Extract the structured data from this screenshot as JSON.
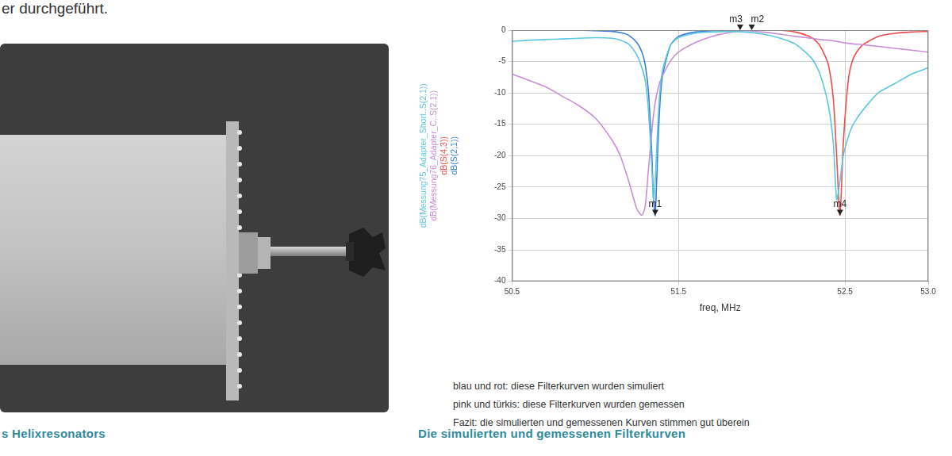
{
  "page": {
    "top_text": "er durchgeführt.",
    "photo_caption": "s Helixresonators",
    "chart_caption": "Die simulierten und gemessenen Filterkurven",
    "notes": [
      "blau und rot: diese Filterkurven wurden simuliert",
      "pink und türkis: diese Filterkurven wurden gemessen",
      "Fazit: die simulierten und gemessenen Kurven stimmen gut überein"
    ]
  },
  "chart_data": {
    "type": "line",
    "x_label": "freq, MHz",
    "x": [
      50.5,
      50.6,
      50.7,
      50.8,
      50.9,
      51.0,
      51.1,
      51.15,
      51.2,
      51.25,
      51.28,
      51.3,
      51.32,
      51.34,
      51.35,
      51.36,
      51.38,
      51.4,
      51.45,
      51.5,
      51.6,
      51.7,
      51.8,
      51.9,
      52.0,
      52.1,
      52.2,
      52.3,
      52.35,
      52.4,
      52.43,
      52.45,
      52.47,
      52.49,
      52.52,
      52.55,
      52.6,
      52.7,
      52.8,
      52.9,
      53.0
    ],
    "series": [
      {
        "name": "dB(Messung75_Adapter_Short..S(2,1))",
        "color": "#5cc8e0",
        "values": [
          -1.8,
          -1.6,
          -1.5,
          -1.4,
          -1.3,
          -1.2,
          -1.3,
          -1.6,
          -2.2,
          -4,
          -6,
          -8,
          -13,
          -22,
          -27,
          -24,
          -13,
          -7,
          -2.5,
          -1.2,
          -0.5,
          -0.3,
          -0.2,
          -0.3,
          -0.6,
          -1.2,
          -2.2,
          -4.5,
          -7,
          -12,
          -18,
          -27,
          -24,
          -20,
          -17,
          -15,
          -13,
          -10,
          -8.5,
          -7,
          -6
        ]
      },
      {
        "name": "dB(Messung76_Adapter_C..S(2,1))",
        "color": "#c88fd6",
        "values": [
          -7,
          -8,
          -9,
          -10.5,
          -12,
          -14,
          -17.5,
          -20,
          -24,
          -28.5,
          -29.5,
          -28,
          -22,
          -16,
          -13.5,
          -11.5,
          -9,
          -7.5,
          -5,
          -3.5,
          -2,
          -1,
          -0.4,
          -0.1,
          -0.3,
          -0.6,
          -1,
          -1.3,
          -1.5,
          -1.6,
          -1.7,
          -1.8,
          -1.9,
          -2,
          -2.1,
          -2.2,
          -2.3,
          -2.6,
          -2.9,
          -3.2,
          -3.5
        ]
      },
      {
        "name": "dB(S(4,3))",
        "color": "#f04e4e",
        "values": [
          0,
          0,
          0,
          0,
          0,
          0,
          0,
          0,
          0,
          0,
          0,
          0,
          0,
          0,
          0,
          0,
          0,
          0,
          0,
          0,
          0,
          0,
          0,
          0,
          0,
          0,
          -0.3,
          -1.2,
          -2.5,
          -5.5,
          -11,
          -20,
          -29.5,
          -18,
          -8,
          -4.5,
          -2.5,
          -1,
          -0.5,
          -0.3,
          -0.2
        ]
      },
      {
        "name": "dB(S(2,1))",
        "color": "#3a7fd5",
        "values": [
          0,
          0,
          0,
          0,
          0,
          -0.1,
          -0.2,
          -0.4,
          -0.8,
          -2,
          -3.5,
          -5.5,
          -10,
          -20,
          -27,
          -29.5,
          -16,
          -8,
          -2.5,
          -1,
          -0.3,
          -0.1,
          0,
          0,
          0,
          0,
          0,
          0,
          0,
          0,
          0,
          0,
          0,
          0,
          0,
          0,
          0,
          0,
          0,
          0,
          0
        ]
      }
    ],
    "xlim": [
      50.5,
      53.0
    ],
    "xticks": [
      50.5,
      51.5,
      52.5,
      {
        "value": 53.0,
        "label": "53.0"
      }
    ],
    "ylim": [
      -40,
      0
    ],
    "yticks": [
      -40,
      -35,
      -30,
      -25,
      -20,
      -15,
      -10,
      -5,
      0
    ],
    "grid": true,
    "legend": "left",
    "markers": [
      {
        "label": "m1",
        "x": 51.36,
        "y": -29.5
      },
      {
        "label": "m3",
        "x": 51.87,
        "y": 0
      },
      {
        "label": "m2",
        "x": 51.94,
        "y": 0
      },
      {
        "label": "m4",
        "x": 52.47,
        "y": -29.5
      }
    ]
  }
}
